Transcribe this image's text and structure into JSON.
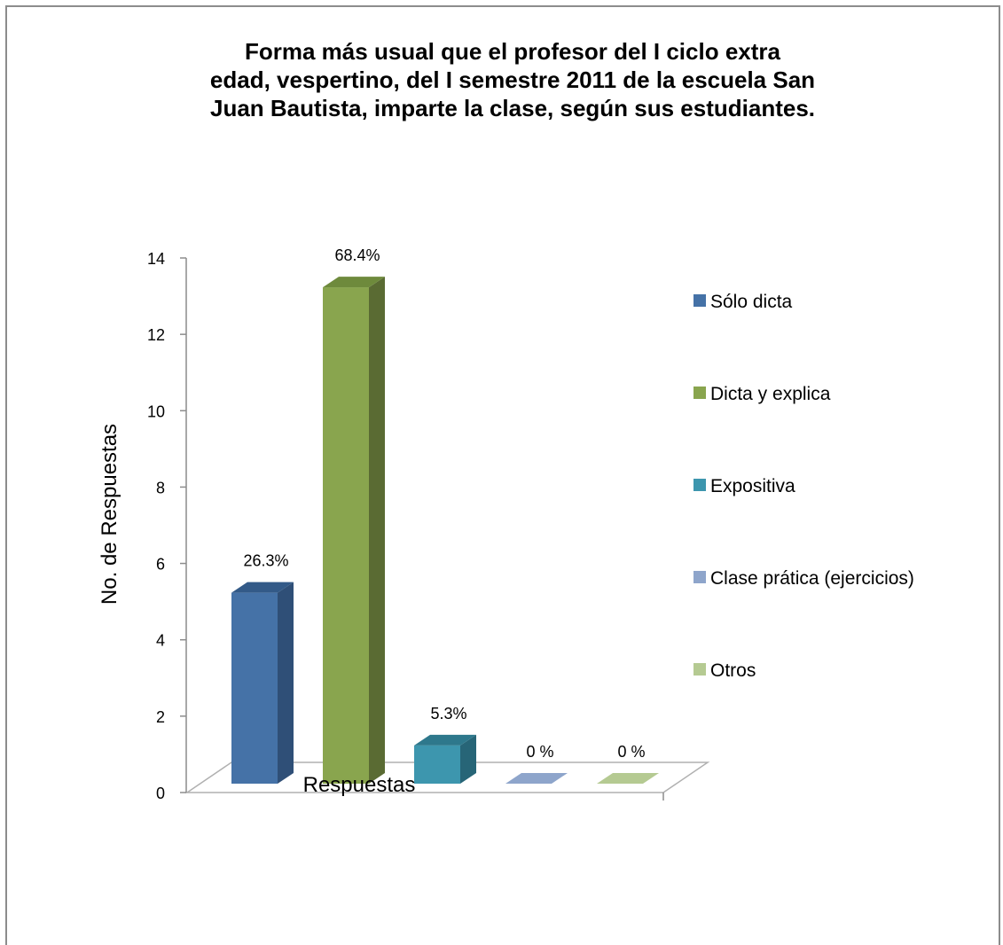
{
  "chart_data": {
    "type": "bar",
    "title": "Forma más usual que el profesor del I ciclo extra\nedad, vespertino, del I semestre 2011 de la escuela San\nJuan Bautista, imparte la clase, según sus estudiantes.",
    "xlabel": "Respuestas",
    "ylabel": "No. de Respuestas",
    "ylim": [
      0,
      14
    ],
    "yticks": [
      "0",
      "2",
      "4",
      "6",
      "8",
      "10",
      "12",
      "14"
    ],
    "grid": false,
    "legend_position": "right",
    "series": [
      {
        "name": "Sólo dicta",
        "value": 5,
        "label": "26.3%",
        "color": "#4572a7",
        "side": "#2f4f77",
        "top": "#335a88"
      },
      {
        "name": "Dicta y explica",
        "value": 13,
        "label": "68.4%",
        "color": "#89a54e",
        "side": "#5a6b33",
        "top": "#6e8a3c"
      },
      {
        "name": "Expositiva",
        "value": 1,
        "label": "5.3%",
        "color": "#3d96ae",
        "side": "#276577",
        "top": "#2e788c"
      },
      {
        "name": "Clase prática (ejercicios)",
        "value": 0,
        "label": "0 %",
        "color": "#8ea5cb",
        "side": "#7089b1",
        "top": "#7f97bf"
      },
      {
        "name": "Otros",
        "value": 0,
        "label": "0 %",
        "color": "#b5ca92",
        "side": "#8ea56b",
        "top": "#a0b87c"
      }
    ]
  }
}
